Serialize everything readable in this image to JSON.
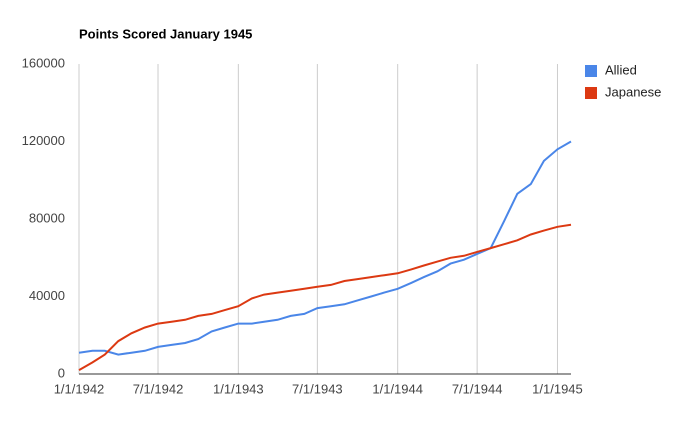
{
  "chart_data": {
    "type": "line",
    "title": "Points Scored January 1945",
    "x": [
      "1/1/1942",
      "2/1/1942",
      "3/1/1942",
      "4/1/1942",
      "5/1/1942",
      "6/1/1942",
      "7/1/1942",
      "8/1/1942",
      "9/1/1942",
      "10/1/1942",
      "11/1/1942",
      "12/1/1942",
      "1/1/1943",
      "2/1/1943",
      "3/1/1943",
      "4/1/1943",
      "5/1/1943",
      "6/1/1943",
      "7/1/1943",
      "8/1/1943",
      "9/1/1943",
      "10/1/1943",
      "11/1/1943",
      "12/1/1943",
      "1/1/1944",
      "2/1/1944",
      "3/1/1944",
      "4/1/1944",
      "5/1/1944",
      "6/1/1944",
      "7/1/1944",
      "8/1/1944",
      "9/1/1944",
      "10/1/1944",
      "11/1/1944",
      "12/1/1944",
      "1/1/1945",
      "2/1/1945"
    ],
    "series": [
      {
        "name": "Allied",
        "color": "#4a86e8",
        "values": [
          11000,
          12000,
          12000,
          10000,
          11000,
          12000,
          14000,
          15000,
          16000,
          18000,
          22000,
          24000,
          26000,
          26000,
          27000,
          28000,
          30000,
          31000,
          34000,
          35000,
          36000,
          38000,
          40000,
          42000,
          44000,
          47000,
          50000,
          53000,
          57000,
          59000,
          62000,
          65000,
          79000,
          93000,
          98000,
          110000,
          116000,
          120000
        ]
      },
      {
        "name": "Japanese",
        "color": "#dc3912",
        "values": [
          2000,
          6000,
          10000,
          17000,
          21000,
          24000,
          26000,
          27000,
          28000,
          30000,
          31000,
          33000,
          35000,
          39000,
          41000,
          42000,
          43000,
          44000,
          45000,
          46000,
          48000,
          49000,
          50000,
          51000,
          52000,
          54000,
          56000,
          58000,
          60000,
          61000,
          63000,
          65000,
          67000,
          69000,
          72000,
          74000,
          76000,
          77000
        ]
      }
    ],
    "xlim": [
      "1/1/1942",
      "2/1/1945"
    ],
    "xticks": [
      "1/1/1942",
      "7/1/1942",
      "1/1/1943",
      "7/1/1943",
      "1/1/1944",
      "7/1/1944",
      "1/1/1945"
    ],
    "ylim": [
      0,
      160000
    ],
    "yticks": [
      0,
      40000,
      80000,
      120000,
      160000
    ],
    "grid": "x",
    "legend": "right"
  }
}
